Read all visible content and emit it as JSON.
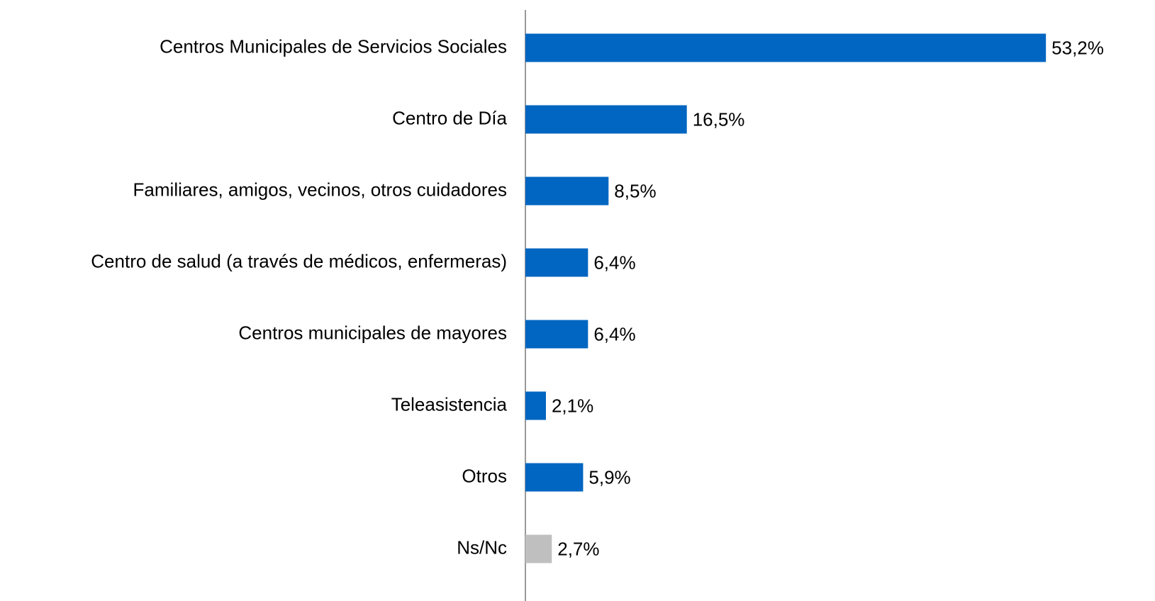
{
  "chart_data": {
    "type": "hbar",
    "categories": [
      "Centros Municipales de Servicios Sociales",
      "Centro de Día",
      "Familiares, amigos, vecinos, otros cuidadores",
      "Centro de salud (a través de médicos, enfermeras)",
      "Centros municipales de mayores",
      "Teleasistencia",
      "Otros",
      "Ns/Nc"
    ],
    "values": [
      53.2,
      16.5,
      8.5,
      6.4,
      6.4,
      2.1,
      5.9,
      2.7
    ],
    "value_labels": [
      "53,2%",
      "16,5%",
      "8,5%",
      "6,4%",
      "6,4%",
      "2,1%",
      "5,9%",
      "2,7%"
    ],
    "colors": [
      "#0066c1",
      "#0066c1",
      "#0066c1",
      "#0066c1",
      "#0066c1",
      "#0066c1",
      "#0066c1",
      "#bfbfbf"
    ],
    "xlim": [
      0,
      60
    ]
  }
}
